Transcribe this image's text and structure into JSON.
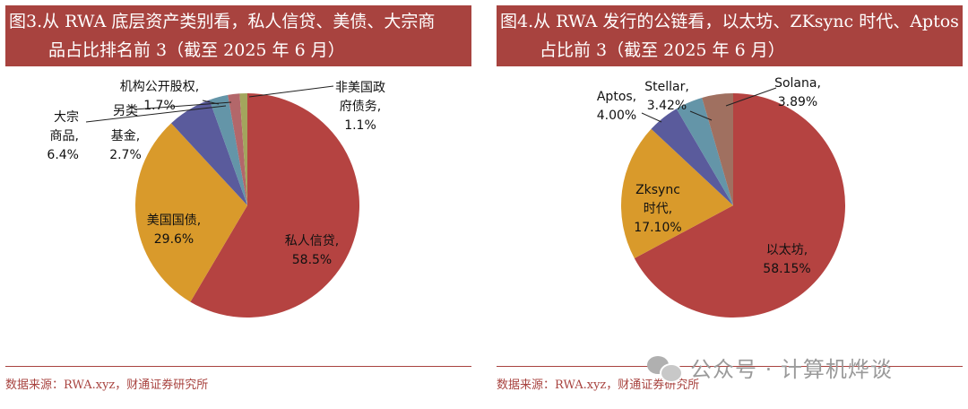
{
  "left": {
    "title_line1": "图3.从 RWA 底层资产类别看，私人信贷、美债、大宗商",
    "title_line2": "品占比排名前 3（截至 2025 年 6 月）",
    "source": "数据来源：RWA.xyz，财通证券研究所"
  },
  "right": {
    "title_line1": "图4.从 RWA 发行的公链看，以太坊、ZKsync 时代、Aptos",
    "title_line2": "占比前 3（截至 2025 年 6 月）",
    "source": "数据来源：RWA.xyz，财通证券研究所"
  },
  "watermark": {
    "text": "公众号 · 计算机烨谈"
  },
  "colors": {
    "title_bg": "#a8433f",
    "red": "#b54341",
    "orange": "#d99a2b",
    "navy": "#5a5b9c",
    "teal": "#6495a8",
    "brown": "#a07060",
    "olive": "#a3a55d",
    "rose": "#b3676a"
  },
  "chart_data": [
    {
      "type": "pie",
      "slices": [
        {
          "label_lines": [
            "私人信贷,",
            "58.5%"
          ],
          "value": 58.5,
          "color": "#b54341"
        },
        {
          "label_lines": [
            "美国国债,",
            "29.6%"
          ],
          "value": 29.6,
          "color": "#d99a2b"
        },
        {
          "label_lines": [
            "大宗",
            "商品,",
            "6.4%"
          ],
          "value": 6.4,
          "color": "#5a5b9c"
        },
        {
          "label_lines": [
            "基金,",
            "2.7%"
          ],
          "value": 2.7,
          "color": "#6495a8"
        },
        {
          "label_lines": [
            "机构公开股权,",
            "1.7%"
          ],
          "value": 1.7,
          "color": "#b3676a"
        },
        {
          "label_lines": [
            "非美国政",
            "府债务,",
            "1.1%"
          ],
          "value": 1.1,
          "color": "#a3a55d"
        }
      ],
      "other_label": "另类"
    },
    {
      "type": "pie",
      "slices": [
        {
          "label_lines": [
            "以太坊,",
            "58.15%"
          ],
          "value": 58.15,
          "color": "#b54341"
        },
        {
          "label_lines": [
            "Zksync",
            "时代,",
            "17.10%"
          ],
          "value": 17.1,
          "color": "#d99a2b"
        },
        {
          "label_lines": [
            "Aptos,",
            "4.00%"
          ],
          "value": 4.0,
          "color": "#5a5b9c"
        },
        {
          "label_lines": [
            "Stellar,",
            "3.42%"
          ],
          "value": 3.42,
          "color": "#6495a8"
        },
        {
          "label_lines": [
            "Solana,",
            "3.89%"
          ],
          "value": 3.89,
          "color": "#a07060"
        }
      ]
    }
  ]
}
